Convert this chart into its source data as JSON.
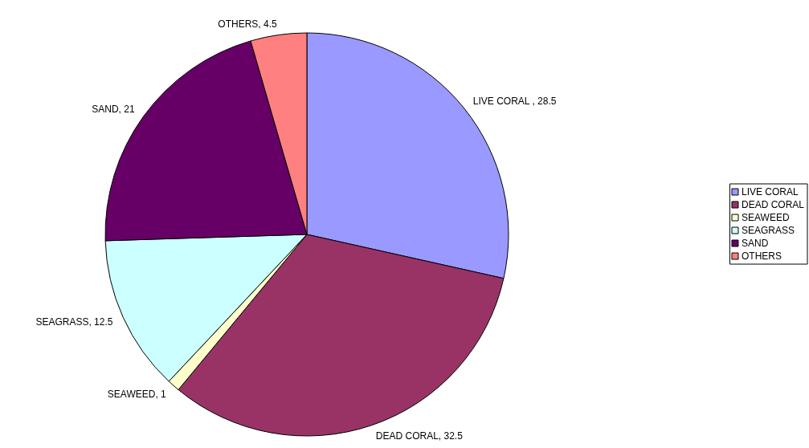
{
  "chart_data": {
    "type": "pie",
    "categories": [
      "LIVE CORAL",
      "DEAD CORAL",
      "SEAWEED",
      "SEAGRASS",
      "SAND",
      "OTHERS"
    ],
    "values": [
      28.5,
      32.5,
      1,
      12.5,
      21,
      4.5
    ],
    "value_labels": [
      "LIVE CORAL , 28.5",
      "DEAD CORAL, 32.5",
      "SEAWEED, 1",
      "SEAGRASS, 12.5",
      "SAND, 21",
      "OTHERS, 4.5"
    ],
    "colors": [
      "#9999ff",
      "#993366",
      "#ffffcc",
      "#ccffff",
      "#660066",
      "#ff8080"
    ],
    "legend": "right"
  }
}
